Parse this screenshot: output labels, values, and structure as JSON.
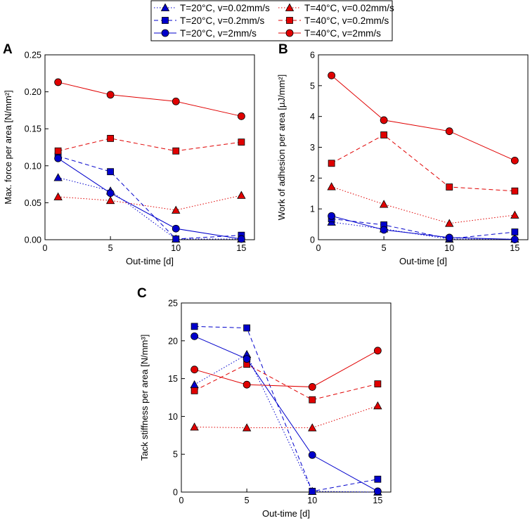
{
  "legend": {
    "entries": [
      {
        "label": "T=20°C, v=0.02mm/s",
        "color": "#0000cc",
        "marker": "triangle",
        "dash": "dot"
      },
      {
        "label": "T=40°C, v=0.02mm/s",
        "color": "#e00000",
        "marker": "triangle",
        "dash": "dot"
      },
      {
        "label": "T=20°C, v=0.2mm/s",
        "color": "#0000cc",
        "marker": "square",
        "dash": "dash"
      },
      {
        "label": "T=40°C, v=0.2mm/s",
        "color": "#e00000",
        "marker": "square",
        "dash": "dash"
      },
      {
        "label": "T=20°C, v=2mm/s",
        "color": "#0000cc",
        "marker": "circle",
        "dash": "solid"
      },
      {
        "label": "T=40°C, v=2mm/s",
        "color": "#e00000",
        "marker": "circle",
        "dash": "solid"
      }
    ]
  },
  "chart_data": [
    {
      "type": "line",
      "panel": "A",
      "xlabel": "Out-time [d]",
      "ylabel": "Max. force per area [N/mm²]",
      "xlim": [
        0,
        16
      ],
      "ylim": [
        0,
        0.25
      ],
      "xticks": [
        0,
        5,
        10,
        15
      ],
      "xtick_labels": [
        "0",
        "5",
        "10",
        "15"
      ],
      "yticks": [
        0,
        0.05,
        0.1,
        0.15,
        0.2,
        0.25
      ],
      "ytick_labels": [
        "0.00",
        "0.05",
        "0.10",
        "0.15",
        "0.20",
        "0.25"
      ],
      "x": [
        1,
        5,
        10,
        15
      ],
      "series": [
        {
          "name": "T=20°C, v=0.02mm/s",
          "values": [
            0.084,
            0.066,
            0.001,
            0.001
          ]
        },
        {
          "name": "T=40°C, v=0.02mm/s",
          "values": [
            0.058,
            0.053,
            0.04,
            0.06
          ]
        },
        {
          "name": "T=20°C, v=0.2mm/s",
          "values": [
            0.113,
            0.092,
            0.001,
            0.006
          ]
        },
        {
          "name": "T=40°C, v=0.2mm/s",
          "values": [
            0.12,
            0.137,
            0.12,
            0.132
          ]
        },
        {
          "name": "T=20°C, v=2mm/s",
          "values": [
            0.11,
            0.063,
            0.015,
            0.001
          ]
        },
        {
          "name": "T=40°C, v=2mm/s",
          "values": [
            0.213,
            0.196,
            0.187,
            0.167
          ]
        }
      ]
    },
    {
      "type": "line",
      "panel": "B",
      "xlabel": "Out-time [d]",
      "ylabel": "Work of adhesion per area [µJ/mm²]",
      "xlim": [
        0,
        16
      ],
      "ylim": [
        0,
        6
      ],
      "xticks": [
        0,
        5,
        10,
        15
      ],
      "xtick_labels": [
        "0",
        "5",
        "10",
        "15"
      ],
      "yticks": [
        0,
        1,
        2,
        3,
        4,
        5,
        6
      ],
      "ytick_labels": [
        "0",
        "1",
        "2",
        "3",
        "4",
        "5",
        "6"
      ],
      "x": [
        1,
        5,
        10,
        15
      ],
      "series": [
        {
          "name": "T=20°C, v=0.02mm/s",
          "values": [
            0.57,
            0.35,
            0.02,
            0.02
          ]
        },
        {
          "name": "T=40°C, v=0.02mm/s",
          "values": [
            1.72,
            1.15,
            0.53,
            0.8
          ]
        },
        {
          "name": "T=20°C, v=0.2mm/s",
          "values": [
            0.68,
            0.48,
            0.03,
            0.25
          ]
        },
        {
          "name": "T=40°C, v=0.2mm/s",
          "values": [
            2.48,
            3.4,
            1.71,
            1.58
          ]
        },
        {
          "name": "T=20°C, v=2mm/s",
          "values": [
            0.77,
            0.32,
            0.07,
            0.01
          ]
        },
        {
          "name": "T=40°C, v=2mm/s",
          "values": [
            5.33,
            3.88,
            3.52,
            2.57
          ]
        }
      ]
    },
    {
      "type": "line",
      "panel": "C",
      "xlabel": "Out-time [d]",
      "ylabel": "Tack stiffness per area [N/mm³]",
      "xlim": [
        0,
        16
      ],
      "ylim": [
        0,
        25
      ],
      "xticks": [
        0,
        5,
        10,
        15
      ],
      "xtick_labels": [
        "0",
        "5",
        "10",
        "15"
      ],
      "yticks": [
        0,
        5,
        10,
        15,
        20,
        25
      ],
      "ytick_labels": [
        "0",
        "5",
        "10",
        "15",
        "20",
        "25"
      ],
      "x": [
        1,
        5,
        10,
        15
      ],
      "series": [
        {
          "name": "T=20°C, v=0.02mm/s",
          "values": [
            14.2,
            18.2,
            0.1,
            0.0
          ]
        },
        {
          "name": "T=40°C, v=0.02mm/s",
          "values": [
            8.6,
            8.5,
            8.5,
            11.4
          ]
        },
        {
          "name": "T=20°C, v=0.2mm/s",
          "values": [
            21.9,
            21.7,
            0.1,
            1.7
          ]
        },
        {
          "name": "T=40°C, v=0.2mm/s",
          "values": [
            13.4,
            16.9,
            12.2,
            14.3
          ]
        },
        {
          "name": "T=20°C, v=2mm/s",
          "values": [
            20.6,
            17.6,
            4.9,
            0.1
          ]
        },
        {
          "name": "T=40°C, v=2mm/s",
          "values": [
            16.2,
            14.2,
            13.9,
            18.7
          ]
        }
      ]
    }
  ]
}
